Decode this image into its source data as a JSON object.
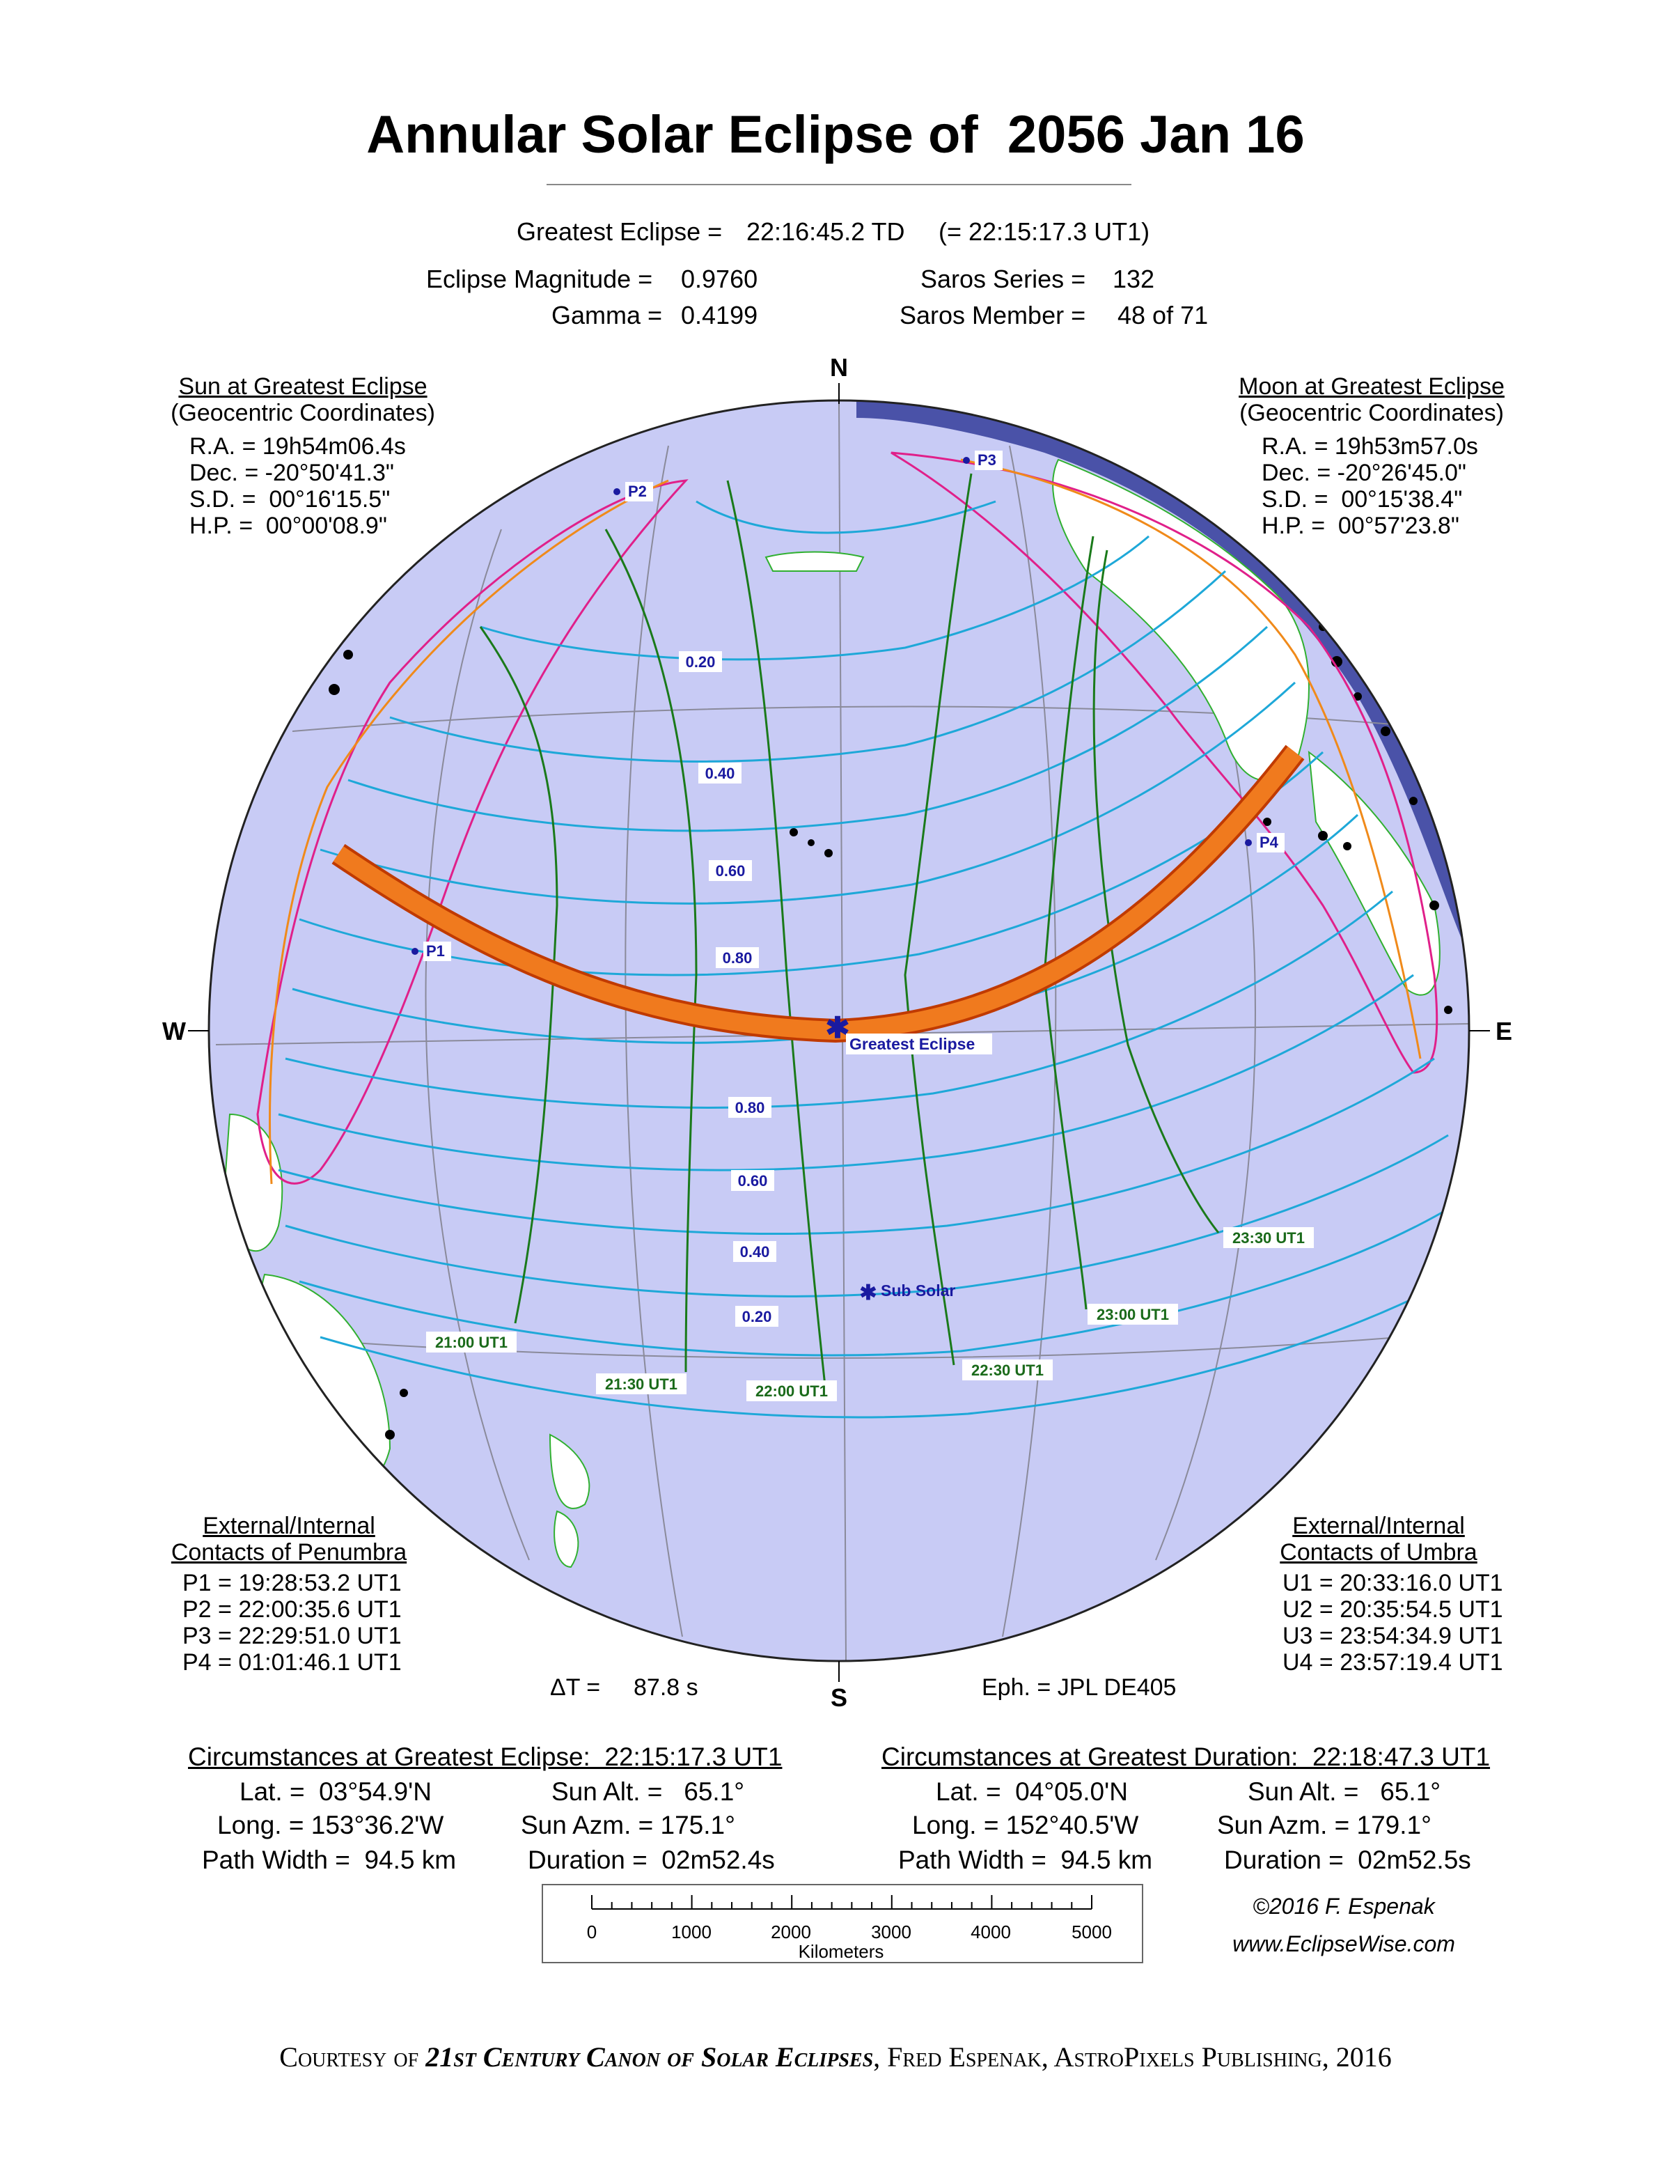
{
  "title": "Annular Solar Eclipse of  2056 Jan 16",
  "greatest_eclipse": {
    "label": "Greatest Eclipse =",
    "td": "22:16:45.2 TD",
    "ut": "(= 22:15:17.3 UT1)"
  },
  "params": {
    "magnitude_label": "Eclipse Magnitude =",
    "magnitude": "0.9760",
    "gamma_label": "Gamma =",
    "gamma": "0.4199",
    "saros_series_label": "Saros Series =",
    "saros_series": "132",
    "saros_member_label": "Saros Member =",
    "saros_member": "48 of 71"
  },
  "sun": {
    "heading": "Sun at Greatest Eclipse",
    "sub": "(Geocentric Coordinates)",
    "ra": "R.A. = 19h54m06.4s",
    "dec": "Dec. = -20°50'41.3\"",
    "sd": "S.D. =  00°16'15.5\"",
    "hp": "H.P. =  00°00'08.9\""
  },
  "moon": {
    "heading": "Moon at Greatest Eclipse",
    "sub": "(Geocentric Coordinates)",
    "ra": "R.A. = 19h53m57.0s",
    "dec": "Dec. = -20°26'45.0\"",
    "sd": "S.D. =  00°15'38.4\"",
    "hp": "H.P. =  00°57'23.8\""
  },
  "penumbra": {
    "heading1": "External/Internal",
    "heading2": "Contacts of Penumbra",
    "p1": "P1 = 19:28:53.2 UT1",
    "p2": "P2 = 22:00:35.6 UT1",
    "p3": "P3 = 22:29:51.0 UT1",
    "p4": "P4 = 01:01:46.1 UT1"
  },
  "umbra": {
    "heading1": "External/Internal",
    "heading2": "Contacts of Umbra",
    "u1": "U1 = 20:33:16.0 UT1",
    "u2": "U2 = 20:35:54.5 UT1",
    "u3": "U3 = 23:54:34.9 UT1",
    "u4": "U4 = 23:57:19.4 UT1"
  },
  "delta_t": {
    "label": "ΔT =",
    "value": "87.8 s"
  },
  "ephemeris": "Eph. = JPL DE405",
  "compass": {
    "n": "N",
    "s": "S",
    "e": "E",
    "w": "W"
  },
  "map": {
    "magnitude_labels": [
      "0.20",
      "0.40",
      "0.60",
      "0.80",
      "0.80",
      "0.60",
      "0.40",
      "0.20"
    ],
    "time_labels": [
      "21:00 UT1",
      "21:30 UT1",
      "22:00 UT1",
      "22:30 UT1",
      "23:00 UT1",
      "23:30 UT1"
    ],
    "contact_labels": [
      "P1",
      "P2",
      "P3",
      "P4"
    ],
    "greatest_eclipse_label": "Greatest Eclipse",
    "sub_solar_label": "Sub Solar",
    "colors": {
      "ocean": "#c8cbf5",
      "night_side": "#4a52a8",
      "eclipse_path": "#f07a1e",
      "path_outline": "#c03a00",
      "magnitude_lines": "#1ea8d8",
      "time_lines": "#1a7a1a",
      "penumbral_limits": "#e0208a",
      "rise_set_limits": "#f08a1a",
      "land": "#ffffff",
      "borders": "#30b030"
    }
  },
  "circ_greatest_eclipse": {
    "heading": "Circumstances at Greatest Eclipse:  22:15:17.3 UT1",
    "lat": "Lat. =  03°54.9'N",
    "long": "Long. = 153°36.2'W",
    "path_width": "Path Width =  94.5 km",
    "sun_alt": "Sun Alt. =   65.1°",
    "sun_azm": "Sun Azm. = 175.1°",
    "duration": "Duration =  02m52.4s"
  },
  "circ_greatest_duration": {
    "heading": "Circumstances at Greatest Duration:  22:18:47.3 UT1",
    "lat": "Lat. =  04°05.0'N",
    "long": "Long. = 152°40.5'W",
    "path_width": "Path Width =  94.5 km",
    "sun_alt": "Sun Alt. =   65.1°",
    "sun_azm": "Sun Azm. = 179.1°",
    "duration": "Duration =  02m52.5s"
  },
  "scale": {
    "ticks": [
      "0",
      "1000",
      "2000",
      "3000",
      "4000",
      "5000"
    ],
    "unit": "Kilometers"
  },
  "credit": {
    "copyright": "©2016  F. Espenak",
    "url": "www.EclipseWise.com"
  },
  "footer": {
    "courtesy": "Courtesy of ",
    "book": "21st Century Canon of Solar Eclipses",
    "rest": ", Fred Espenak, AstroPixels Publishing, 2016"
  }
}
